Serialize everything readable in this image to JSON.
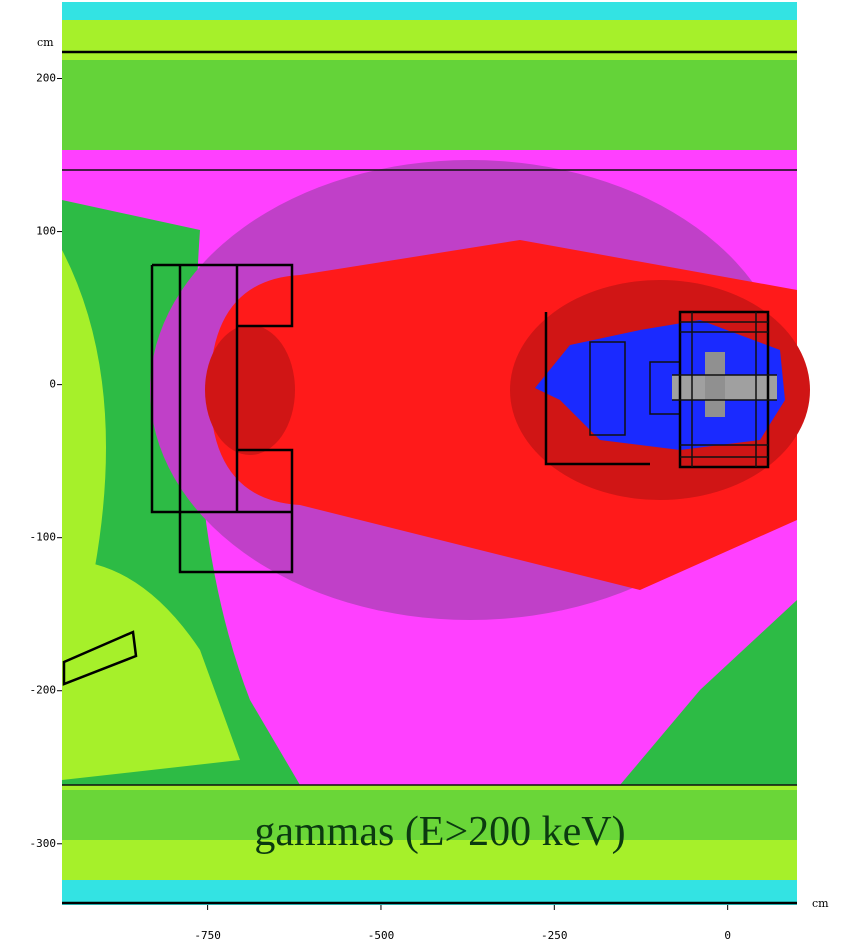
{
  "chart_data": {
    "type": "heatmap",
    "xlim": [
      -960,
      100
    ],
    "ylim": [
      -340,
      250
    ],
    "xticks": [
      -750,
      -500,
      -250,
      0
    ],
    "yticks": [
      200,
      100,
      0,
      -100,
      -200,
      -300
    ],
    "x_unit": "cm",
    "y_unit": "cm",
    "annotation": "gammas (E>200 keV)"
  }
}
